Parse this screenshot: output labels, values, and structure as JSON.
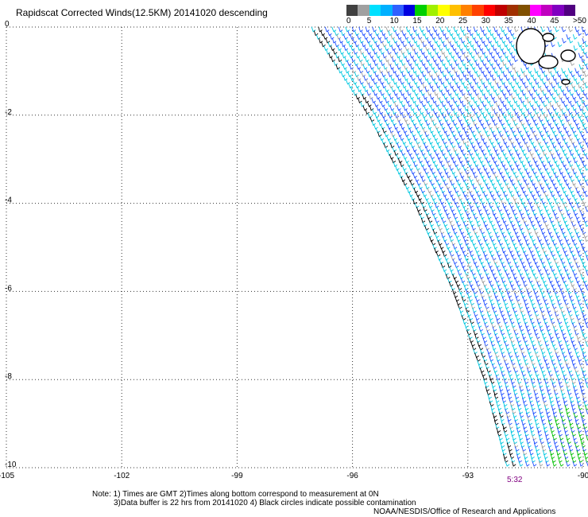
{
  "title": "Rapidscat Corrected Winds(12.5KM) 20141020 descending",
  "colorbar": {
    "colors": [
      "#404040",
      "#a0a0a0",
      "#00e0ff",
      "#00b0ff",
      "#3060ff",
      "#0000e0",
      "#00d000",
      "#a0f000",
      "#ffff00",
      "#ffc000",
      "#ff8000",
      "#ff4000",
      "#ff0000",
      "#c00000",
      "#a03000",
      "#805000",
      "#ff00ff",
      "#c000c0",
      "#8000c0",
      "#500080"
    ],
    "labels": [
      "0",
      "5",
      "10",
      "15",
      "20",
      "25",
      "30",
      "35",
      "40",
      "45",
      ">50 knots"
    ]
  },
  "chart_data": {
    "type": "scatter",
    "subtype": "wind-barb map",
    "xlim": [
      -105,
      -90
    ],
    "ylim": [
      -10,
      0
    ],
    "x_ticks": [
      "-105",
      "-102",
      "-99",
      "-96",
      "-93",
      "-90"
    ],
    "y_ticks": [
      "0",
      "-2",
      "-4",
      "-6",
      "-8",
      "-10"
    ],
    "grid": true,
    "swath_edge": [
      [
        -97.1,
        0
      ],
      [
        -95.6,
        -2
      ],
      [
        -94.4,
        -4
      ],
      [
        -93.4,
        -6
      ],
      [
        -92.6,
        -8
      ],
      [
        -92.0,
        -10
      ]
    ],
    "land_contours": [
      {
        "lon": -91.6,
        "lat": -0.2,
        "note": "island"
      },
      {
        "lon": -90.7,
        "lat": -0.6,
        "note": "island"
      },
      {
        "lon": -90.3,
        "lat": -0.7,
        "note": "island"
      }
    ],
    "speed_colors": [
      {
        "max_knots": 5,
        "color": "#a0a0a0"
      },
      {
        "max_knots": 10,
        "color": "#00c8e0"
      },
      {
        "max_knots": 15,
        "color": "#2050ff"
      },
      {
        "max_knots": 20,
        "color": "#00c000"
      }
    ]
  },
  "notes": {
    "line1": "Note: 1) Times are GMT 2)Times along bottom correspond to measurement at 0N",
    "line2": "3)Data buffer is 22 hrs from 20141020 4) Black circles indicate possible contamination",
    "line3": "NOAA/NESDIS/Office of Research and Applications"
  },
  "time_label": "5:32"
}
